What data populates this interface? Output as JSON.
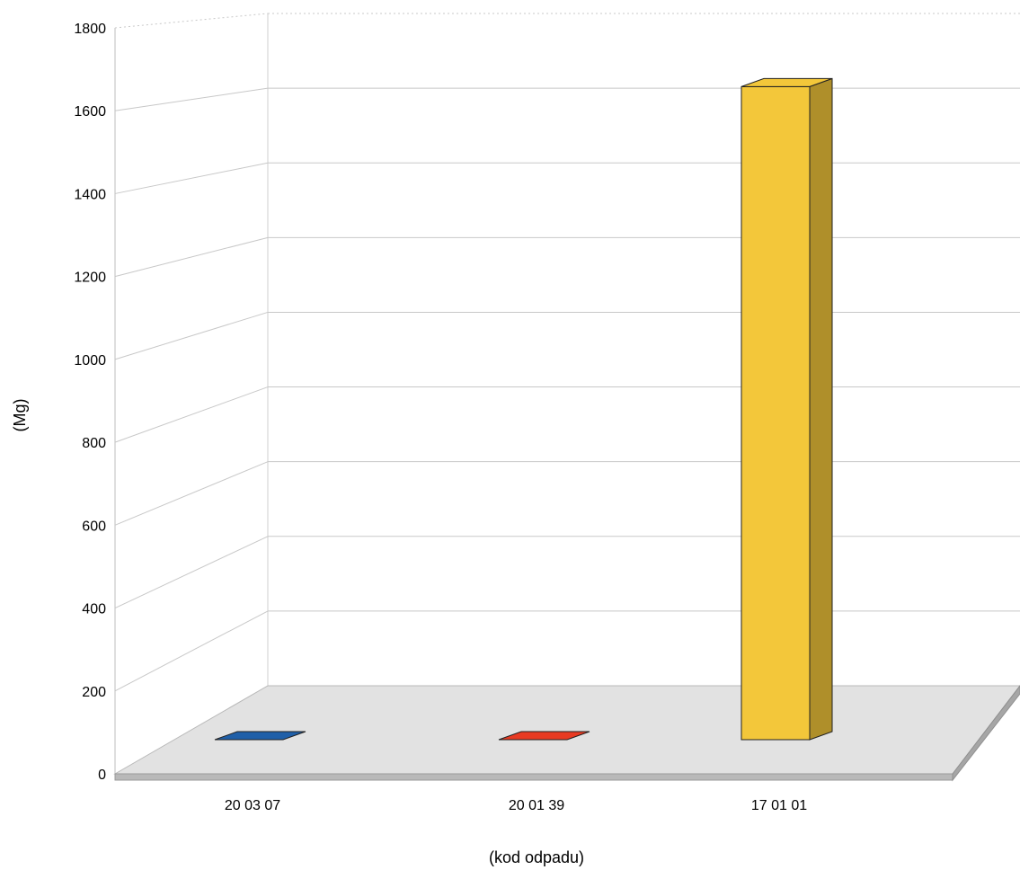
{
  "chart_data": {
    "type": "bar",
    "three_d": true,
    "categories": [
      "20 03 07",
      "20 01 39",
      "17 01 01"
    ],
    "values": [
      0,
      0,
      1650
    ],
    "colors": [
      "#1f5fa8",
      "#e83a22",
      "#f3c73a"
    ],
    "title": "",
    "xlabel": "(kod odpadu)",
    "ylabel": "(Mg)",
    "ylim": [
      0,
      1800
    ],
    "yticks": [
      0,
      200,
      400,
      600,
      800,
      1000,
      1200,
      1400,
      1600,
      1800
    ],
    "grid": true,
    "legend": "none"
  }
}
